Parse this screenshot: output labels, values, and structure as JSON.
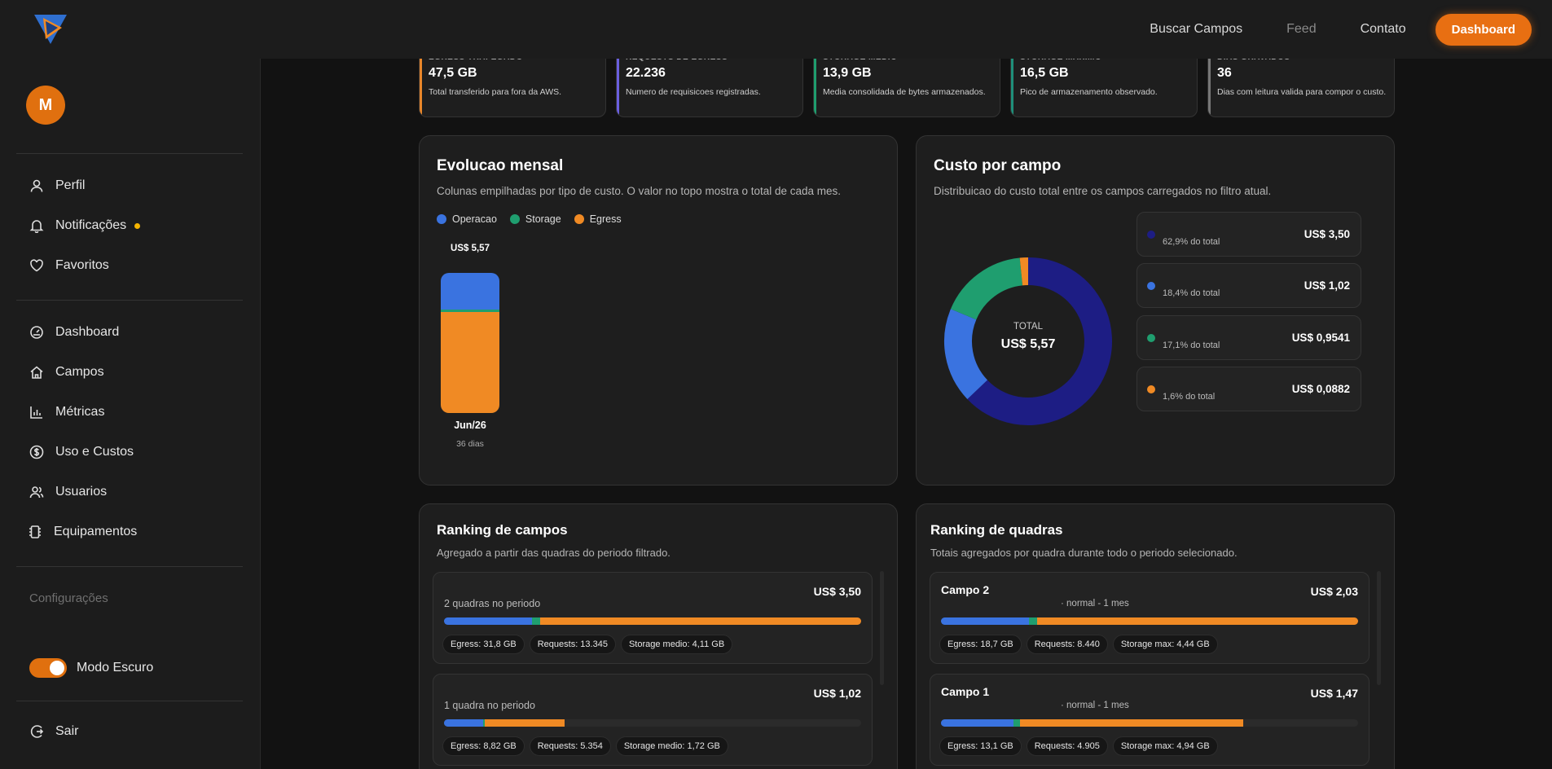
{
  "nav": {
    "buscar": "Buscar Campos",
    "feed": "Feed",
    "contato": "Contato",
    "dashboard": "Dashboard"
  },
  "sidebar": {
    "avatar_initial": "M",
    "items": [
      {
        "label": "Perfil",
        "icon": "user-icon"
      },
      {
        "label": "Notificações",
        "icon": "bell-icon"
      },
      {
        "label": "Favoritos",
        "icon": "heart-icon"
      },
      {
        "label": "Dashboard",
        "icon": "gauge-icon"
      },
      {
        "label": "Campos",
        "icon": "home-icon"
      },
      {
        "label": "Métricas",
        "icon": "bar-chart-icon"
      },
      {
        "label": "Uso e Custos",
        "icon": "dollar-icon"
      },
      {
        "label": "Usuarios",
        "icon": "users-icon"
      },
      {
        "label": "Equipamentos",
        "icon": "chip-icon"
      }
    ],
    "settings": "Configurações",
    "dark_mode": "Modo Escuro",
    "logout": "Sair"
  },
  "kpis": [
    {
      "label": "EGRESS TRAFEGADO",
      "value": "47,5 GB",
      "desc": "Total transferido para fora da AWS.",
      "color": "#e8862a"
    },
    {
      "label": "REQUESTS DE EGRESS",
      "value": "22.236",
      "desc": "Numero de requisicoes registradas.",
      "color": "#6a5fe0"
    },
    {
      "label": "STORAGE MEDIO",
      "value": "13,9 GB",
      "desc": "Media consolidada de bytes armazenados.",
      "color": "#1f9e6f"
    },
    {
      "label": "STORAGE MAXIMO",
      "value": "16,5 GB",
      "desc": "Pico de armazenamento observado.",
      "color": "#1f8f7a"
    },
    {
      "label": "DIAS GRAVADOS",
      "value": "36",
      "desc": "Dias com leitura valida para compor o custo.",
      "color": "#777777"
    }
  ],
  "evolucao": {
    "title": "Evolucao mensal",
    "subtitle": "Colunas empilhadas por tipo de custo. O valor no topo mostra o total de cada mes.",
    "legend": [
      {
        "name": "Operacao",
        "color": "#3a73e0"
      },
      {
        "name": "Storage",
        "color": "#1f9e6f"
      },
      {
        "name": "Egress",
        "color": "#f08a24"
      }
    ],
    "chart_data": {
      "type": "bar",
      "stacked": true,
      "categories": [
        "Jun/26"
      ],
      "category_notes": [
        "36 dias"
      ],
      "totals_labels": [
        "US$ 5,57"
      ],
      "series": [
        {
          "name": "Operacao",
          "values": [
            1.46
          ]
        },
        {
          "name": "Storage",
          "values": [
            0.11
          ]
        },
        {
          "name": "Egress",
          "values": [
            4.0
          ]
        }
      ]
    }
  },
  "custo": {
    "title": "Custo por campo",
    "subtitle": "Distribuicao do custo total entre os campos carregados no filtro atual.",
    "total_label": "TOTAL",
    "total_value": "US$ 5,57",
    "chart_data": {
      "type": "pie",
      "donut": true,
      "values": [
        62.9,
        18.4,
        17.1,
        1.6
      ],
      "colors": [
        "#1d1d84",
        "#3a73e0",
        "#1f9e6f",
        "#f08a24"
      ]
    },
    "rows": [
      {
        "pct": "62,9% do total",
        "amt": "US$ 3,50",
        "color": "#1d1d84"
      },
      {
        "pct": "18,4% do total",
        "amt": "US$ 1,02",
        "color": "#3a73e0"
      },
      {
        "pct": "17,1% do total",
        "amt": "US$ 0,9541",
        "color": "#1f9e6f"
      },
      {
        "pct": "1,6% do total",
        "amt": "US$ 0,0882",
        "color": "#f08a24"
      }
    ]
  },
  "ranking_campos": {
    "title": "Ranking de campos",
    "subtitle": "Agregado a partir das quadras do periodo filtrado.",
    "items": [
      {
        "info": "2 quadras no periodo",
        "amt": "US$ 3,50",
        "split": [
          0.21,
          0.02,
          0.77
        ],
        "fill": 1.0,
        "chips": [
          "Egress: 31,8 GB",
          "Requests: 13.345",
          "Storage medio: 4,11 GB"
        ]
      },
      {
        "info": "1 quadra no periodo",
        "amt": "US$ 1,02",
        "split": [
          0.32,
          0.02,
          0.66
        ],
        "fill": 0.29,
        "chips": [
          "Egress: 8,82 GB",
          "Requests: 5.354",
          "Storage medio: 1,72 GB"
        ]
      }
    ]
  },
  "ranking_quadras": {
    "title": "Ranking de quadras",
    "subtitle": "Totais agregados por quadra durante todo o periodo selecionado.",
    "items": [
      {
        "name": "Campo 2",
        "meta": "· normal - 1 mes",
        "amt": "US$ 2,03",
        "split": [
          0.21,
          0.02,
          0.77
        ],
        "fill": 1.0,
        "chips": [
          "Egress: 18,7 GB",
          "Requests: 8.440",
          "Storage max: 4,44 GB"
        ]
      },
      {
        "name": "Campo 1",
        "meta": "· normal - 1 mes",
        "amt": "US$ 1,47",
        "split": [
          0.24,
          0.02,
          0.74
        ],
        "fill": 0.725,
        "chips": [
          "Egress: 13,1 GB",
          "Requests: 4.905",
          "Storage max: 4,94 GB"
        ]
      }
    ]
  }
}
